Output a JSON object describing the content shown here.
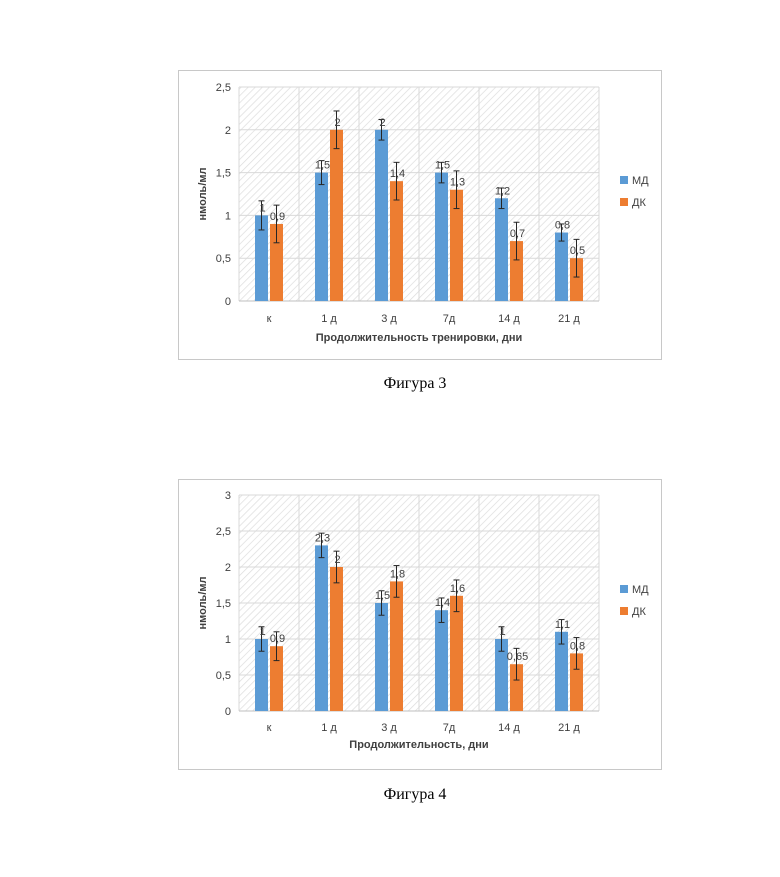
{
  "figures": [
    {
      "caption": "Фигура 3",
      "legend_position": "right",
      "chart_data": {
        "type": "bar",
        "categories": [
          "к",
          "1 д",
          "3 д",
          "7д",
          "14 д",
          "21 д"
        ],
        "series": [
          {
            "name": "МД",
            "color": "#5b9bd5",
            "values": [
              1,
              1.5,
              2,
              1.5,
              1.2,
              0.8
            ],
            "labels": [
              "1",
              "1,5",
              "2",
              "1,5",
              "1,2",
              "0,8"
            ],
            "errors": [
              0.17,
              0.14,
              0.12,
              0.12,
              0.12,
              0.1
            ]
          },
          {
            "name": "ДК",
            "color": "#ed7d31",
            "values": [
              0.9,
              2,
              1.4,
              1.3,
              0.7,
              0.5
            ],
            "labels": [
              "0,9",
              "2",
              "1,4",
              "1,3",
              "0,7",
              "0,5"
            ],
            "errors": [
              0.22,
              0.22,
              0.22,
              0.22,
              0.22,
              0.22
            ]
          }
        ],
        "xlabel": "Продолжительность тренировки, дни",
        "ylabel": "нмоль/мл",
        "ylim": [
          0,
          2.5
        ],
        "yticks": [
          "0",
          "0,5",
          "1",
          "1,5",
          "2",
          "2,5"
        ],
        "grid": true
      }
    },
    {
      "caption": "Фигура 4",
      "legend_position": "right",
      "chart_data": {
        "type": "bar",
        "categories": [
          "к",
          "1 д",
          "3 д",
          "7д",
          "14 д",
          "21 д"
        ],
        "series": [
          {
            "name": "МД",
            "color": "#5b9bd5",
            "values": [
              1,
              2.3,
              1.5,
              1.4,
              1,
              1.1
            ],
            "labels": [
              "1",
              "2,3",
              "1,5",
              "1,4",
              "1",
              "1,1"
            ],
            "errors": [
              0.17,
              0.17,
              0.17,
              0.17,
              0.17,
              0.17
            ]
          },
          {
            "name": "ДК",
            "color": "#ed7d31",
            "values": [
              0.9,
              2,
              1.8,
              1.6,
              0.65,
              0.8
            ],
            "labels": [
              "0,9",
              "2",
              "1,8",
              "1,6",
              "0,65",
              "0,8"
            ],
            "errors": [
              0.2,
              0.22,
              0.22,
              0.22,
              0.22,
              0.22
            ]
          }
        ],
        "xlabel": "Продолжительность, дни",
        "ylabel": "нмоль/мл",
        "ylim": [
          0,
          3
        ],
        "yticks": [
          "0",
          "0,5",
          "1",
          "1,5",
          "2",
          "2,5",
          "3"
        ],
        "grid": true
      }
    }
  ]
}
